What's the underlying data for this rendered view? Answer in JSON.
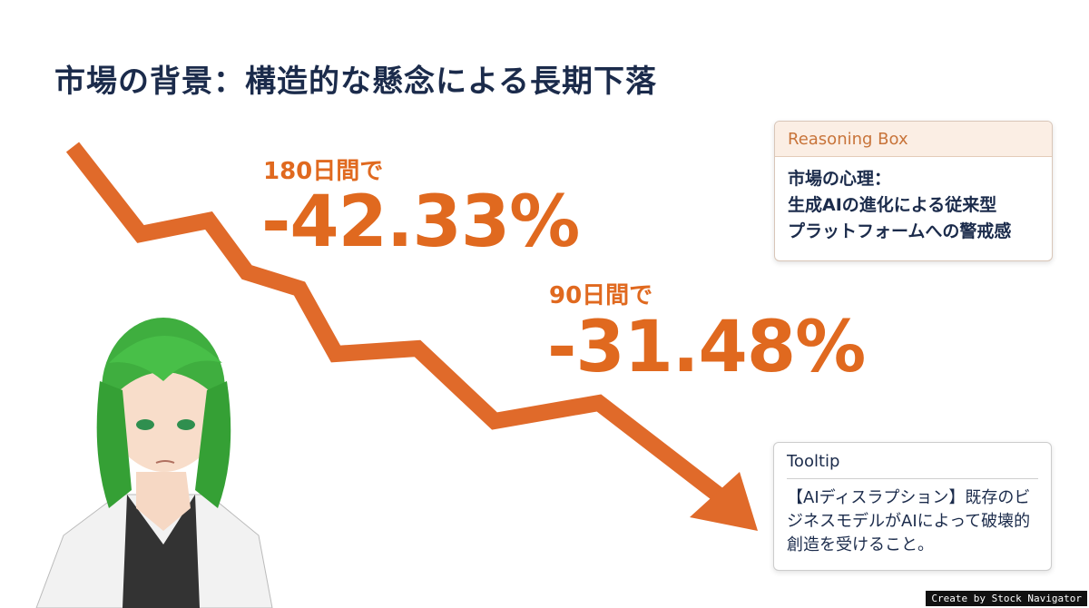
{
  "header": {
    "title": "市場の背景：構造的な懸念による長期下落"
  },
  "stats": [
    {
      "label": "180日間で",
      "value": "-42.33%"
    },
    {
      "label": "90日間で",
      "value": "-31.48%"
    }
  ],
  "reasoning_box": {
    "title": "Reasoning Box",
    "lines": [
      "市場の心理：",
      "生成AIの進化による従来型",
      "プラットフォームへの警戒感"
    ]
  },
  "tooltip": {
    "title": "Tooltip",
    "text": "【AIディスラプション】既存のビジネスモデルがAIによって破壊的創造を受けること。"
  },
  "watermark": "Create by Stock Navigator"
}
